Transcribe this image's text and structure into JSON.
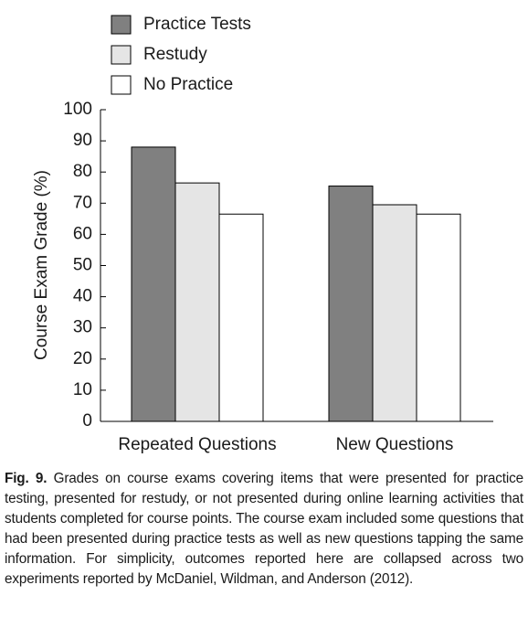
{
  "chart_data": {
    "type": "bar",
    "y_label": "Course Exam Grade (%)",
    "categories": [
      "Repeated Questions",
      "New Questions"
    ],
    "series": [
      {
        "name": "Practice Tests",
        "color": "#808080",
        "values": [
          88,
          75.5
        ]
      },
      {
        "name": "Restudy",
        "color": "#e5e5e5",
        "values": [
          76.5,
          69.5
        ]
      },
      {
        "name": "No Practice",
        "color": "#ffffff",
        "values": [
          66.5,
          66.5
        ]
      }
    ],
    "ylim": [
      0,
      100
    ],
    "yticks": [
      0,
      10,
      20,
      30,
      40,
      50,
      60,
      70,
      80,
      90,
      100
    ],
    "legend": "top-left",
    "figure_label": "Fig. 9.",
    "caption": "Grades on course exams covering items that were presented for practice testing, presented for restudy, or not presented during online learning activities that students completed for course points. The course exam included some questions that had been presented during practice tests as well as new questions tapping the same information. For simplicity, outcomes reported here are collapsed across two experiments reported by McDaniel, Wildman, and Anderson (2012)."
  }
}
